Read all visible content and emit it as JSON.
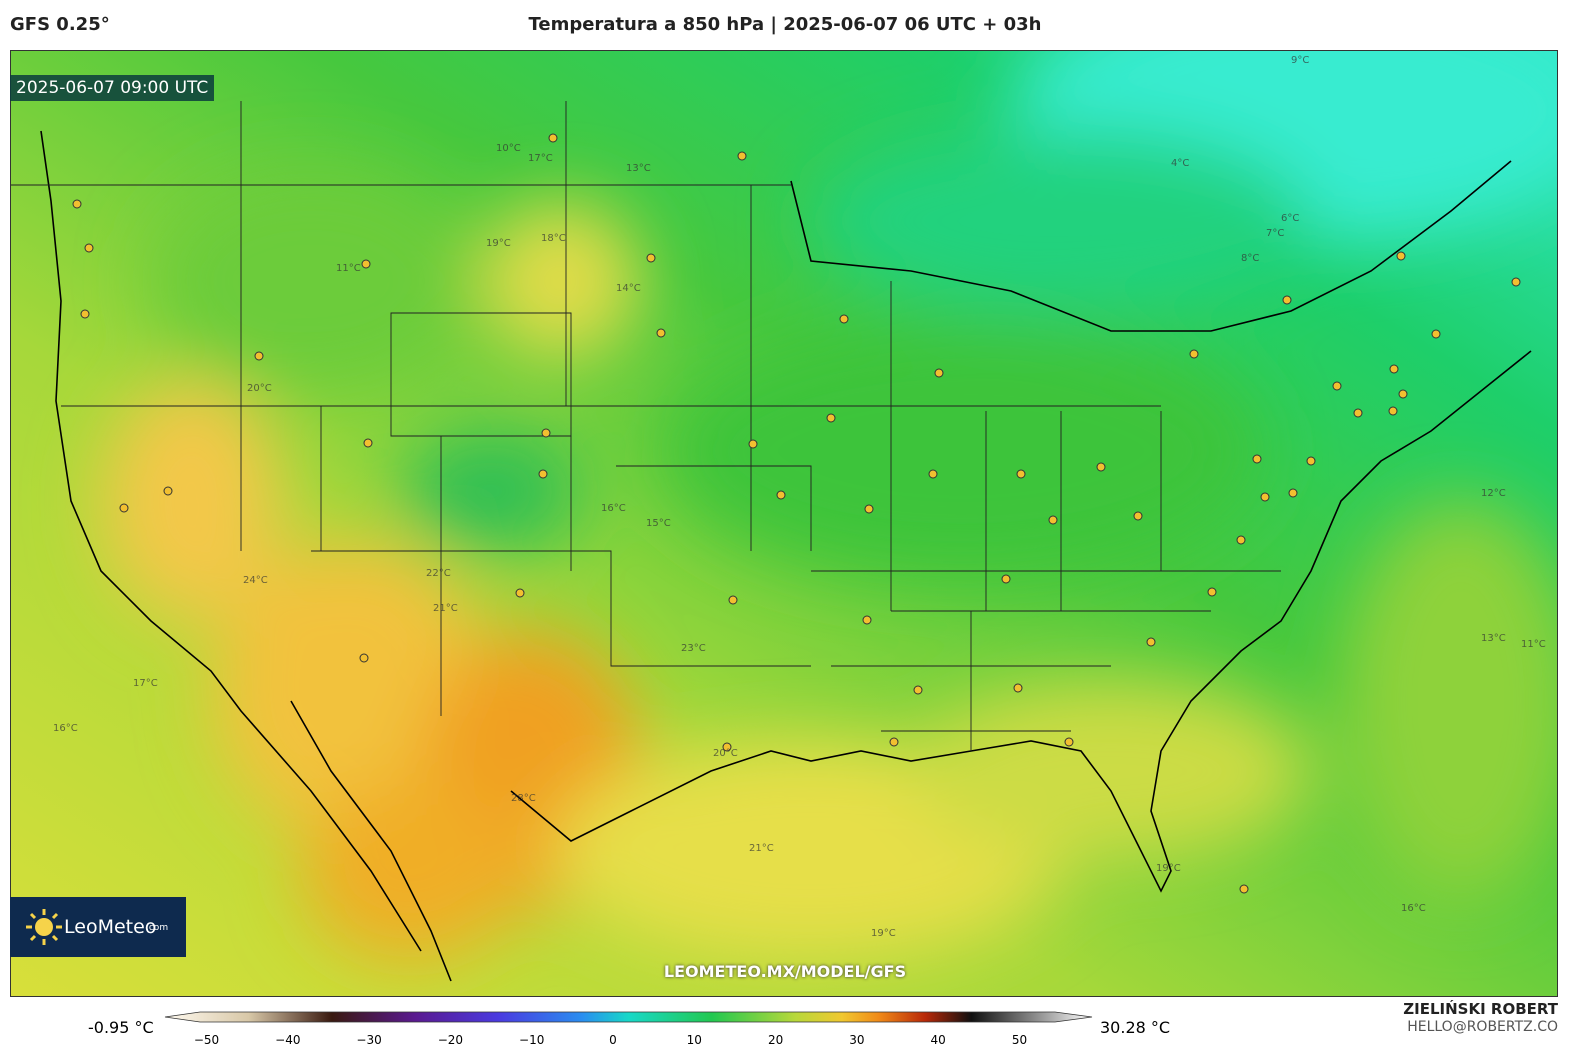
{
  "header": {
    "model": "GFS 0.25°",
    "title": "Temperatura a 850 hPa | 2025-06-07 06 UTC + 03h"
  },
  "map": {
    "valid_time": "2025-06-07 09:00 UTC",
    "watermark": "LEOMETEO.MX/MODEL/GFS",
    "logo": "LeoMeteo",
    "logo_suffix": ".com",
    "contour_labels": [
      "10°C",
      "17°C",
      "13°C",
      "9°C",
      "19°C",
      "18°C",
      "11°C",
      "20°C",
      "8°C",
      "7°C",
      "6°C",
      "4°C",
      "14°C",
      "15°C",
      "16°C",
      "23°C",
      "24°C",
      "22°C",
      "21°C",
      "28°C",
      "12°C",
      "19°C",
      "17°C",
      "16°C",
      "13°C",
      "11°C",
      "16°C",
      "19°C",
      "20°C",
      "21°C"
    ]
  },
  "colorbar": {
    "min_label": "-0.95 °C",
    "max_label": "30.28 °C",
    "ticks": [
      {
        "value": -50,
        "label": "−50"
      },
      {
        "value": -40,
        "label": "−40"
      },
      {
        "value": -30,
        "label": "−30"
      },
      {
        "value": -20,
        "label": "−20"
      },
      {
        "value": -10,
        "label": "−10"
      },
      0,
      10,
      20,
      30,
      40,
      50
    ]
  },
  "footer": {
    "author": "ZIELIŃSKI ROBERT",
    "email": "HELLO@ROBERTZ.CO"
  }
}
